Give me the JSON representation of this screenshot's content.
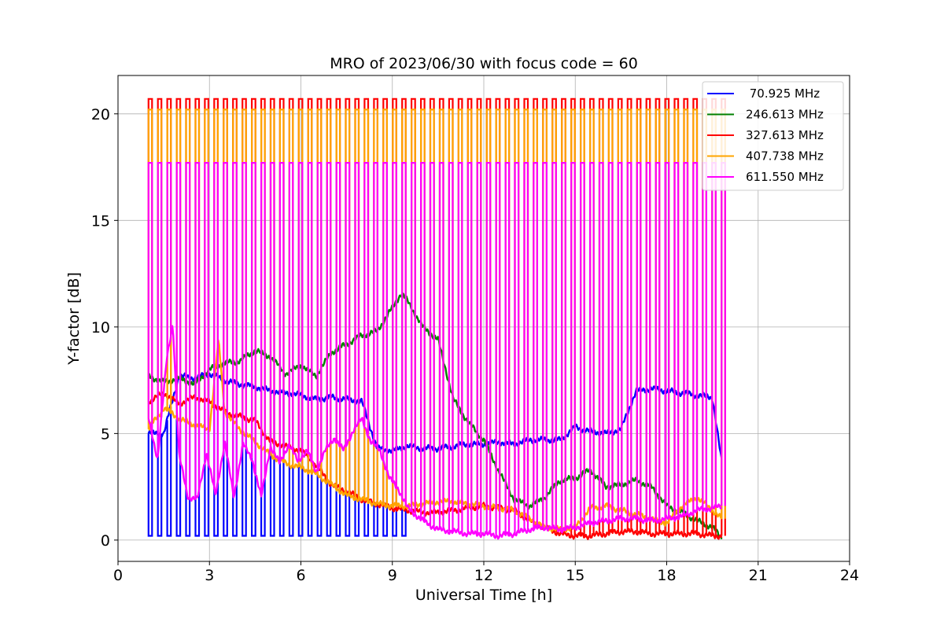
{
  "chart_data": {
    "type": "line",
    "title": "MRO of 2023/06/30 with focus code = 60",
    "xlabel": "Universal Time [h]",
    "ylabel": "Y-factor [dB]",
    "xlim": [
      0,
      24
    ],
    "ylim": [
      -1,
      21.8
    ],
    "xticks": [
      0,
      3,
      6,
      9,
      12,
      15,
      18,
      21,
      24
    ],
    "yticks": [
      0,
      5,
      10,
      15,
      20
    ],
    "xtick_labels": [
      "0",
      "3",
      "6",
      "9",
      "12",
      "15",
      "18",
      "21",
      "24"
    ],
    "ytick_labels": [
      "0",
      "5",
      "10",
      "15",
      "20"
    ],
    "grid": true,
    "legend_position": "top-right",
    "pulse_start": 1.0,
    "pulse_end": 19.8,
    "pulse_count": 62,
    "series": [
      {
        "name": " 70.925 MHz",
        "color": "#0000ff",
        "pulse_top": 0.2,
        "pulse_range": [
          1.0,
          9.6
        ],
        "x": [
          1.0,
          1.5,
          2.0,
          2.5,
          3.0,
          3.5,
          4.0,
          4.5,
          5.0,
          5.5,
          6.0,
          6.5,
          7.0,
          7.5,
          8.0,
          8.5,
          9.0,
          9.5,
          10.0,
          10.5,
          11.0,
          11.5,
          12.0,
          12.5,
          13.0,
          13.5,
          14.0,
          14.5,
          15.0,
          15.5,
          16.0,
          16.5,
          17.0,
          17.5,
          18.0,
          18.5,
          19.0,
          19.5,
          19.8
        ],
        "y": [
          5.0,
          5.0,
          7.7,
          7.6,
          7.8,
          7.5,
          7.3,
          7.2,
          7.0,
          6.9,
          6.8,
          6.6,
          6.7,
          6.6,
          6.5,
          4.3,
          4.2,
          4.4,
          4.3,
          4.3,
          4.4,
          4.5,
          4.5,
          4.6,
          4.5,
          4.7,
          4.7,
          4.7,
          5.3,
          5.1,
          5.0,
          5.2,
          7.0,
          7.1,
          7.0,
          6.9,
          6.8,
          6.7,
          3.7
        ]
      },
      {
        "name": "246.613 MHz",
        "color": "#008000",
        "x": [
          1.0,
          1.5,
          2.0,
          2.5,
          3.0,
          3.5,
          4.0,
          4.5,
          5.0,
          5.5,
          6.0,
          6.5,
          7.0,
          7.5,
          8.0,
          8.5,
          9.0,
          9.3,
          9.5,
          10.0,
          10.5,
          11.0,
          11.5,
          12.0,
          12.5,
          13.0,
          13.5,
          14.0,
          14.5,
          15.0,
          15.5,
          16.0,
          16.5,
          17.0,
          17.5,
          18.0,
          18.5,
          19.0,
          19.5,
          19.8
        ],
        "y": [
          7.7,
          7.4,
          7.6,
          7.3,
          8.0,
          8.3,
          8.4,
          8.9,
          8.6,
          7.8,
          8.2,
          7.7,
          8.8,
          9.2,
          9.6,
          9.8,
          10.9,
          11.6,
          11.2,
          10.0,
          9.4,
          6.6,
          5.5,
          4.7,
          3.2,
          1.9,
          1.6,
          2.0,
          2.8,
          2.9,
          3.3,
          2.5,
          2.6,
          2.8,
          2.5,
          1.6,
          1.3,
          0.9,
          0.6,
          0.1
        ]
      },
      {
        "name": "327.613 MHz",
        "color": "#ff0000",
        "pulse_top": 20.7,
        "pulse_range": [
          1.0,
          19.8
        ],
        "x": [
          1.0,
          1.5,
          2.0,
          2.5,
          3.0,
          3.5,
          4.0,
          4.5,
          5.0,
          5.5,
          6.0,
          6.5,
          7.0,
          7.5,
          8.0,
          8.5,
          9.0,
          9.5,
          10.0,
          10.5,
          11.0,
          11.5,
          12.0,
          12.5,
          13.0,
          13.5,
          14.0,
          14.5,
          15.0,
          15.5,
          16.0,
          16.5,
          17.0,
          17.5,
          18.0,
          18.5,
          19.0,
          19.5,
          19.8
        ],
        "y": [
          6.5,
          6.9,
          6.4,
          6.7,
          6.5,
          6.0,
          5.8,
          5.6,
          4.6,
          4.4,
          4.2,
          3.5,
          2.6,
          2.3,
          1.9,
          1.7,
          1.5,
          1.4,
          1.3,
          1.3,
          1.4,
          1.5,
          1.6,
          1.5,
          1.4,
          0.9,
          0.6,
          0.3,
          0.2,
          0.2,
          0.3,
          0.4,
          0.4,
          0.3,
          0.3,
          0.3,
          0.3,
          0.2,
          0.2
        ]
      },
      {
        "name": "407.738 MHz",
        "color": "#ffa500",
        "pulse_top": 20.2,
        "pulse_range": [
          1.0,
          19.8
        ],
        "x": [
          1.0,
          1.5,
          2.0,
          2.5,
          3.0,
          3.3,
          3.5,
          4.0,
          4.5,
          5.0,
          5.5,
          6.0,
          6.5,
          7.0,
          7.5,
          8.0,
          8.5,
          9.0,
          9.5,
          10.0,
          10.5,
          11.0,
          11.5,
          12.0,
          12.5,
          13.0,
          13.5,
          14.0,
          14.5,
          15.0,
          15.5,
          16.0,
          16.5,
          17.0,
          17.5,
          18.0,
          18.5,
          19.0,
          19.5,
          19.8
        ],
        "y": [
          5.2,
          6.2,
          5.7,
          5.4,
          5.2,
          9.4,
          6.0,
          5.2,
          4.6,
          4.0,
          3.6,
          3.4,
          3.1,
          2.6,
          2.1,
          1.9,
          1.7,
          1.6,
          1.6,
          1.7,
          1.8,
          1.8,
          1.7,
          1.6,
          1.5,
          1.4,
          1.0,
          0.6,
          0.5,
          0.6,
          1.5,
          1.6,
          1.4,
          1.2,
          1.0,
          0.8,
          1.6,
          2.0,
          1.4,
          1.0
        ]
      },
      {
        "name": "611.550 MHz",
        "color": "#ff00ff",
        "pulse_top": 17.7,
        "pulse_range": [
          1.0,
          19.8
        ],
        "x": [
          1.0,
          1.3,
          1.6,
          1.8,
          2.0,
          2.3,
          2.6,
          2.9,
          3.2,
          3.5,
          3.8,
          4.1,
          4.4,
          4.7,
          5.0,
          5.3,
          5.6,
          5.9,
          6.2,
          6.5,
          6.8,
          7.1,
          7.4,
          7.7,
          8.0,
          8.3,
          8.6,
          8.9,
          9.2,
          9.5,
          10.0,
          10.5,
          11.0,
          11.5,
          12.0,
          12.5,
          13.0,
          13.5,
          14.0,
          14.5,
          15.0,
          15.5,
          16.0,
          16.5,
          17.0,
          17.5,
          18.0,
          18.5,
          19.0,
          19.5,
          19.8
        ],
        "y": [
          5.7,
          3.8,
          8.5,
          10.2,
          4.0,
          2.0,
          1.9,
          4.1,
          2.1,
          4.6,
          2.0,
          4.5,
          3.8,
          2.0,
          4.4,
          3.6,
          4.5,
          3.7,
          4.2,
          3.2,
          4.2,
          4.8,
          4.2,
          5.1,
          5.7,
          4.6,
          4.2,
          2.9,
          2.4,
          1.5,
          0.9,
          0.5,
          0.4,
          0.3,
          0.3,
          0.2,
          0.3,
          0.5,
          0.6,
          0.5,
          0.6,
          0.8,
          0.9,
          1.0,
          1.0,
          0.9,
          1.0,
          1.1,
          1.4,
          1.5,
          1.6
        ]
      }
    ]
  }
}
